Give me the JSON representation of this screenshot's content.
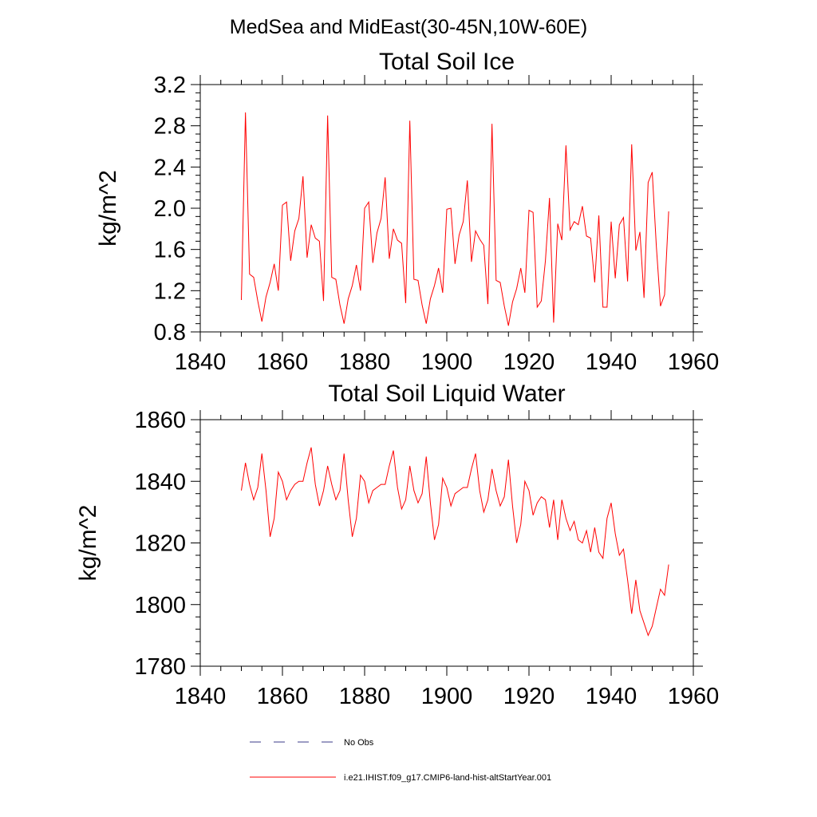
{
  "figure": {
    "suptitle": "MedSea and MidEast(30-45N,10W-60E)"
  },
  "chart_data": [
    {
      "type": "line",
      "title": "Total Soil Ice",
      "xlabel": "",
      "ylabel": "kg/m^2",
      "xlim": [
        1840,
        1960
      ],
      "ylim": [
        0.8,
        3.2
      ],
      "xticks": [
        1840,
        1860,
        1880,
        1900,
        1920,
        1940,
        1960
      ],
      "yticks": [
        "0.8",
        "1.2",
        "1.6",
        "2.0",
        "2.4",
        "2.8",
        "3.2"
      ],
      "grid": false,
      "series": [
        {
          "name": "i.e21.IHIST.f09_g17.CMIP6-land-hist-altStartYear.001",
          "color": "#ff0000",
          "x_start": 1850,
          "x_step": 1,
          "values": [
            1.11,
            2.93,
            1.36,
            1.33,
            1.1,
            0.9,
            1.14,
            1.28,
            1.46,
            1.2,
            2.03,
            2.06,
            1.49,
            1.78,
            1.9,
            2.31,
            1.52,
            1.84,
            1.71,
            1.68,
            1.1,
            2.9,
            1.33,
            1.31,
            1.06,
            0.88,
            1.12,
            1.25,
            1.45,
            1.2,
            2.0,
            2.06,
            1.47,
            1.76,
            1.9,
            2.3,
            1.51,
            1.8,
            1.69,
            1.66,
            1.08,
            2.85,
            1.31,
            1.3,
            1.06,
            0.88,
            1.12,
            1.25,
            1.42,
            1.18,
            1.99,
            2.0,
            1.46,
            1.74,
            1.87,
            2.27,
            1.48,
            1.78,
            1.7,
            1.64,
            1.07,
            2.82,
            1.3,
            1.28,
            1.05,
            0.86,
            1.09,
            1.22,
            1.42,
            1.18,
            1.98,
            1.96,
            1.04,
            1.1,
            1.49,
            2.1,
            0.89,
            1.85,
            1.69,
            2.61,
            1.79,
            1.87,
            1.84,
            2.02,
            1.73,
            1.71,
            1.28,
            1.93,
            1.04,
            1.04,
            1.87,
            1.32,
            1.84,
            1.91,
            1.29,
            2.62,
            1.59,
            1.77,
            1.13,
            2.25,
            2.35,
            1.63,
            1.05,
            1.16,
            1.97
          ]
        }
      ]
    },
    {
      "type": "line",
      "title": "Total Soil Liquid Water",
      "xlabel": "",
      "ylabel": "kg/m^2",
      "xlim": [
        1840,
        1960
      ],
      "ylim": [
        1780,
        1860
      ],
      "xticks": [
        1840,
        1860,
        1880,
        1900,
        1920,
        1940,
        1960
      ],
      "yticks": [
        "1780",
        "1800",
        "1820",
        "1840",
        "1860"
      ],
      "grid": false,
      "series": [
        {
          "name": "i.e21.IHIST.f09_g17.CMIP6-land-hist-altStartYear.001",
          "color": "#ff0000",
          "x_start": 1850,
          "x_step": 1,
          "values": [
            1837,
            1846,
            1839,
            1834,
            1838,
            1849,
            1837,
            1822,
            1828,
            1843,
            1840,
            1834,
            1837,
            1839,
            1840,
            1840,
            1846,
            1851,
            1839,
            1832,
            1837,
            1845,
            1839,
            1834,
            1837,
            1849,
            1834,
            1822,
            1828,
            1842,
            1840,
            1833,
            1837,
            1838,
            1839,
            1839,
            1845,
            1850,
            1838,
            1831,
            1834,
            1845,
            1837,
            1833,
            1836,
            1848,
            1833,
            1821,
            1826,
            1841,
            1838,
            1832,
            1836,
            1837,
            1838,
            1838,
            1844,
            1849,
            1837,
            1830,
            1834,
            1844,
            1837,
            1832,
            1835,
            1847,
            1832,
            1820,
            1826,
            1840,
            1837,
            1829,
            1833,
            1835,
            1834,
            1825,
            1834,
            1821,
            1834,
            1828,
            1824,
            1827,
            1821,
            1820,
            1824,
            1817,
            1825,
            1817,
            1815,
            1828,
            1833,
            1823,
            1816,
            1818,
            1808,
            1797,
            1808,
            1798,
            1794,
            1790,
            1793,
            1799,
            1805,
            1803,
            1813
          ]
        }
      ]
    }
  ],
  "legend": {
    "entries": [
      {
        "label": "No Obs",
        "color": "#3b3b8a",
        "dash": "dashed"
      },
      {
        "label": "i.e21.IHIST.f09_g17.CMIP6-land-hist-altStartYear.001",
        "color": "#ff0000",
        "dash": "solid"
      }
    ]
  }
}
